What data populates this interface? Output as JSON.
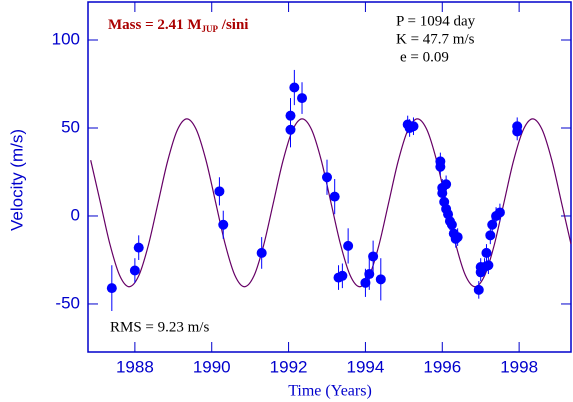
{
  "chart_data": {
    "type": "scatter",
    "xlabel": "Time  (Years)",
    "ylabel": "Velocity  (m/s)",
    "annotations": {
      "mass": [
        "Mass = 2.41 M",
        "JUP",
        " /sini"
      ],
      "period": "P = 1094 day",
      "amplitude": "K = 47.7 m/s",
      "eccentricity": "e = 0.09",
      "rms": "RMS = 9.23 m/s"
    },
    "xlim": [
      1986.78,
      1999.35
    ],
    "ylim": [
      -77.3,
      121.6
    ],
    "xticks": [
      1988,
      1990,
      1992,
      1994,
      1996,
      1998
    ],
    "yticks": [
      -50,
      0,
      50,
      100
    ],
    "color": "#0000ff",
    "axis_color": "#0000cc",
    "x": [
      1987.4,
      1988.0,
      1988.1,
      1990.2,
      1990.3,
      1991.3,
      1992.05,
      1992.05,
      1992.15,
      1992.35,
      1993.0,
      1993.2,
      1993.3,
      1993.4,
      1993.55,
      1994.0,
      1994.1,
      1994.2,
      1994.4,
      1995.1,
      1995.15,
      1995.25,
      1995.95,
      1995.95,
      1996.0,
      1996.0,
      1996.05,
      1996.1,
      1996.1,
      1996.15,
      1996.2,
      1996.25,
      1996.3,
      1996.35,
      1996.4,
      1996.95,
      1997.0,
      1997.0,
      1997.1,
      1997.15,
      1997.2,
      1997.25,
      1997.3,
      1997.4,
      1997.5,
      1997.95,
      1997.95
    ],
    "values": [
      -41,
      -31,
      -18,
      14,
      -5,
      -21,
      57,
      49,
      73,
      67,
      22,
      11,
      -35,
      -34,
      -17,
      -38,
      -33,
      -23,
      -36,
      52,
      50,
      51,
      31,
      28,
      16,
      13,
      8,
      18,
      4,
      1,
      -3,
      -5,
      -10,
      -13,
      -12,
      -42,
      -32,
      -29,
      -29,
      -21,
      -28,
      -11,
      -5,
      0,
      2,
      51,
      48
    ],
    "errors": [
      13,
      7,
      7,
      8,
      8,
      9,
      10,
      10,
      10,
      9,
      10,
      10,
      7,
      7,
      10,
      8,
      9,
      9,
      12,
      5,
      5,
      5,
      5,
      5,
      5,
      5,
      5,
      5,
      5,
      5,
      5,
      5,
      5,
      5,
      5,
      5,
      5,
      5,
      5,
      5,
      5,
      5,
      5,
      5,
      5,
      5,
      5
    ],
    "fit": {
      "color": "#660066",
      "x": [
        1986.85,
        1987.1,
        1987.35,
        1987.6,
        1987.85,
        1988.1,
        1988.35,
        1988.6,
        1988.85,
        1989.1,
        1989.35,
        1989.6,
        1989.85,
        1990.1,
        1990.35,
        1990.6,
        1990.85,
        1991.1,
        1991.35,
        1991.6,
        1991.85,
        1992.1,
        1992.35,
        1992.6,
        1992.85,
        1993.1,
        1993.35,
        1993.6,
        1993.85,
        1994.1,
        1994.35,
        1994.6,
        1994.85,
        1995.1,
        1995.35,
        1995.6,
        1995.85,
        1996.1,
        1996.35,
        1996.6,
        1996.85,
        1997.1,
        1997.35,
        1997.6,
        1997.85,
        1998.1,
        1998.35,
        1998.6,
        1998.85,
        1999.1,
        1999.35
      ],
      "values": [
        31.7,
        7.9,
        -16.0,
        -33.6,
        -40.2,
        -34.0,
        -16.7,
        7.1,
        31.0,
        48.6,
        55.2,
        49.0,
        31.7,
        7.9,
        -16.0,
        -33.6,
        -40.2,
        -34.0,
        -16.7,
        7.1,
        31.0,
        48.6,
        55.2,
        49.0,
        31.7,
        7.9,
        -16.0,
        -33.6,
        -40.2,
        -34.0,
        -16.7,
        7.1,
        31.0,
        48.6,
        55.2,
        49.0,
        31.7,
        7.9,
        -16.0,
        -33.6,
        -40.2,
        -34.0,
        -16.7,
        7.1,
        31.0,
        48.6,
        55.2,
        49.0,
        31.7,
        7.9,
        -16.0
      ]
    }
  }
}
